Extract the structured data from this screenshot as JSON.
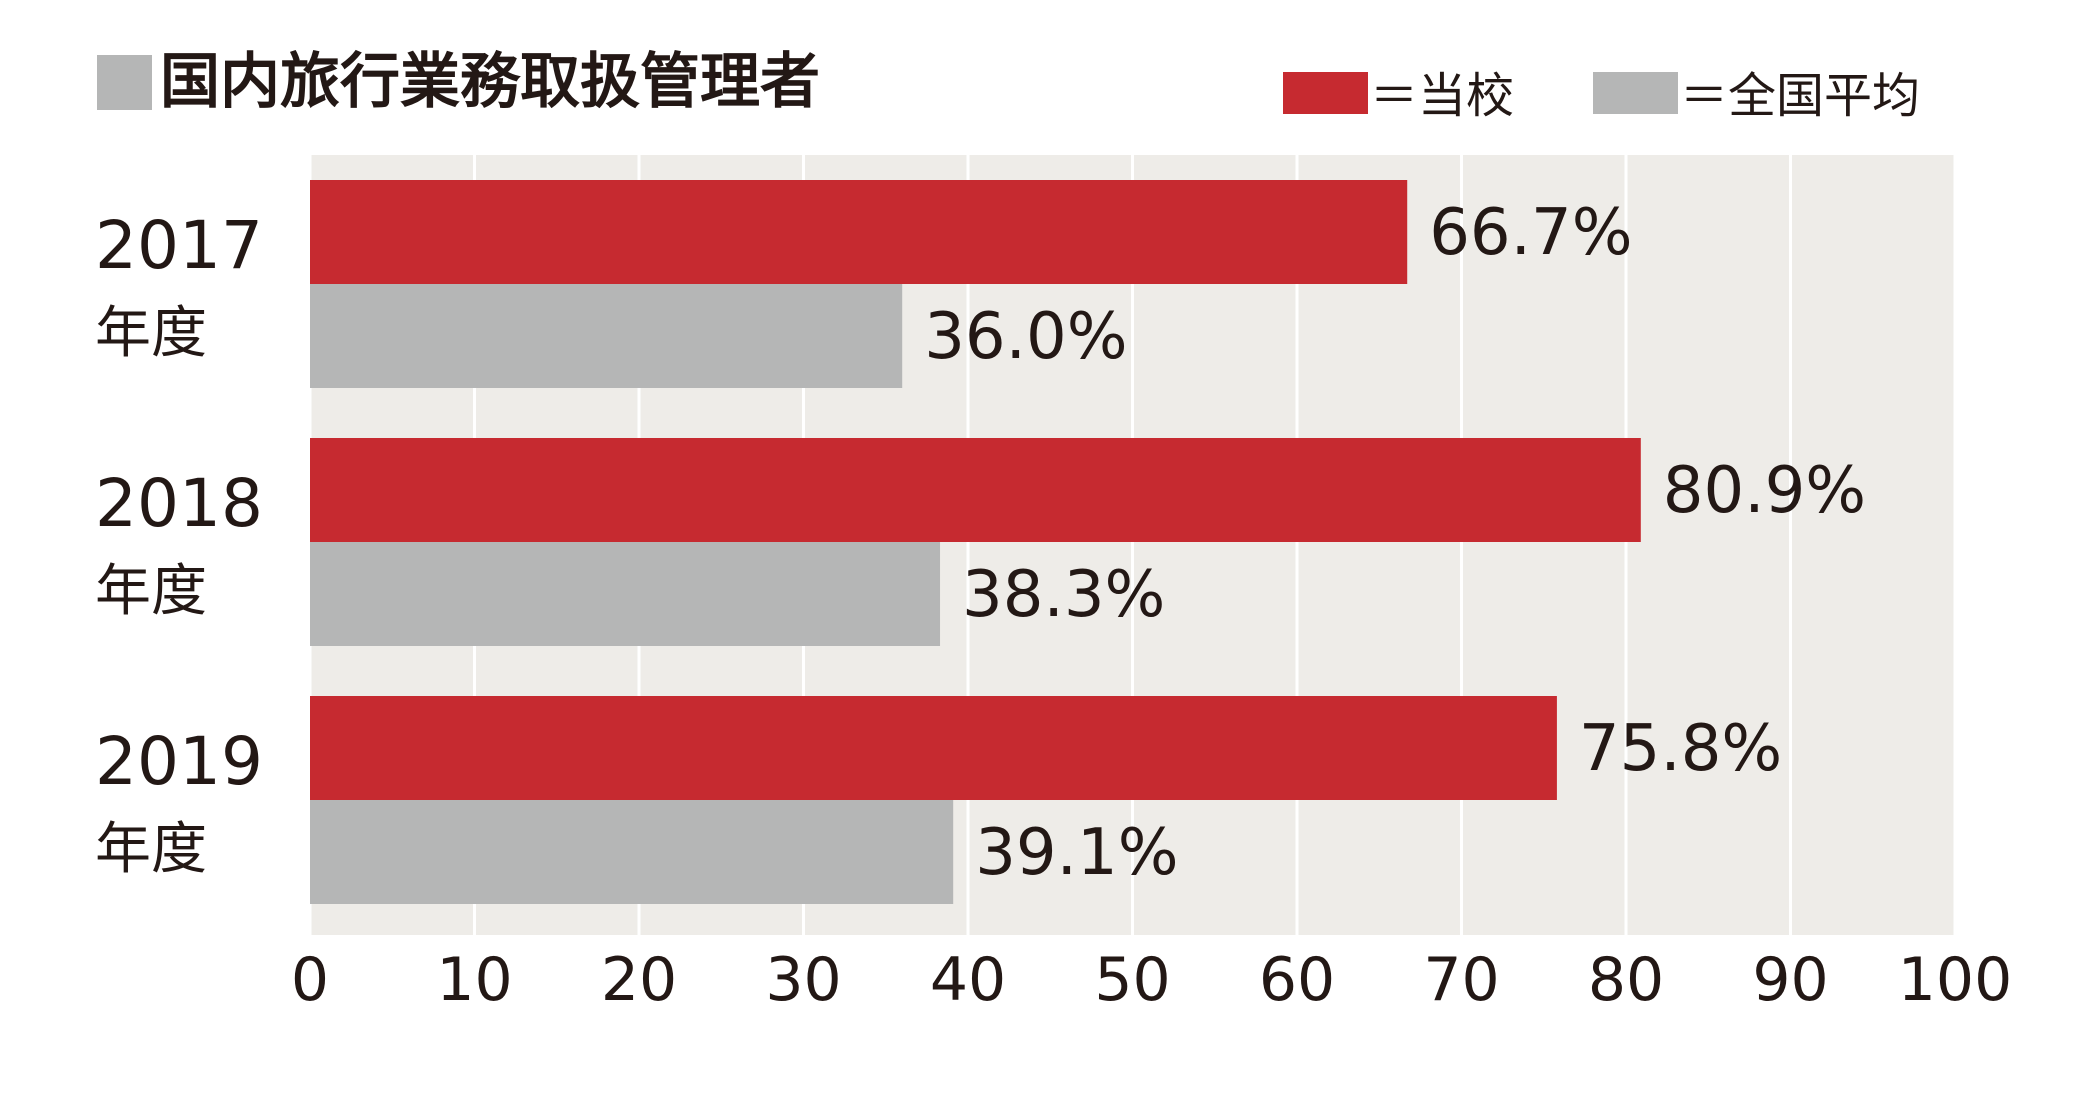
{
  "chart_data": {
    "type": "bar",
    "orientation": "horizontal",
    "title": "国内旅行業務取扱管理者",
    "categories": [
      {
        "year": "2017",
        "suffix": "年度"
      },
      {
        "year": "2018",
        "suffix": "年度"
      },
      {
        "year": "2019",
        "suffix": "年度"
      }
    ],
    "series": [
      {
        "name": "＝当校",
        "color": "#c62a30",
        "values": [
          66.7,
          80.9,
          75.8
        ],
        "labels": [
          "66.7%",
          "80.9%",
          "75.8%"
        ]
      },
      {
        "name": "＝全国平均",
        "color": "#b5b6b6",
        "values": [
          36.0,
          38.3,
          39.1
        ],
        "labels": [
          "36.0%",
          "38.3%",
          "39.1%"
        ]
      }
    ],
    "xlim": [
      0,
      100
    ],
    "xticks": [
      "0",
      "10",
      "20",
      "30",
      "40",
      "50",
      "60",
      "70",
      "80",
      "90",
      "100"
    ],
    "grid": true,
    "legend_position": "top-right",
    "colors": {
      "plot_background": "#eeece8",
      "gridline": "#ffffff",
      "text": "#231815",
      "title_marker": "#b5b6b6"
    }
  }
}
